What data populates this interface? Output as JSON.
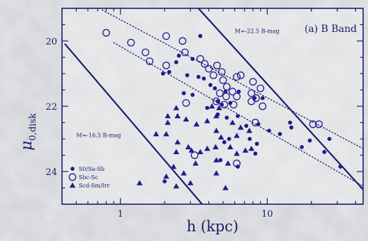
{
  "chart_data": {
    "type": "scatter",
    "panel_label": "(a) B Band",
    "xlabel": "h (kpc)",
    "ylabel_main": "μ",
    "ylabel_sub": "0,disk",
    "xscale": "log",
    "xlim": [
      0.4,
      45
    ],
    "ylim": [
      25.0,
      19.0
    ],
    "xticks": [
      1,
      10
    ],
    "xtick_labels": [
      "1",
      "10"
    ],
    "yticks": [
      20,
      22,
      24
    ],
    "ytick_labels": [
      "20",
      "22",
      "24"
    ],
    "legend_position": "bottom-left",
    "legend": [
      {
        "marker": "filled-circle",
        "label": "S0/Sa-Sb"
      },
      {
        "marker": "open-circle",
        "label": "Sbc-Sc"
      },
      {
        "marker": "filled-triangle",
        "label": "Scd-Sm/Irr"
      }
    ],
    "reference_lines": [
      {
        "label": "M=-22.5 B-mag",
        "style": "solid",
        "points": [
          [
            3.4,
            19.0
          ],
          [
            45,
            24.55
          ]
        ]
      },
      {
        "label": "M=-16.5 B-mag",
        "style": "solid",
        "points": [
          [
            0.42,
            20.1
          ],
          [
            3.6,
            25.0
          ]
        ]
      },
      {
        "style": "dotted",
        "points": [
          [
            0.75,
            19.05
          ],
          [
            45,
            23.3
          ]
        ]
      },
      {
        "style": "dotted",
        "points": [
          [
            0.9,
            20.05
          ],
          [
            45,
            24.45
          ]
        ]
      }
    ],
    "line_labels": [
      {
        "text": "M=-22.5 B-mag",
        "x": 6.0,
        "y": 19.75
      },
      {
        "text": "M=-16.5 B-mag",
        "x": 0.5,
        "y": 22.95
      }
    ],
    "series": [
      {
        "name": "S0/Sa-Sb",
        "marker": "filled-circle",
        "points": [
          [
            3.5,
            19.85
          ],
          [
            2.5,
            20.45
          ],
          [
            3.1,
            20.55
          ],
          [
            2.4,
            20.65
          ],
          [
            1.95,
            21.0
          ],
          [
            2.15,
            20.95
          ],
          [
            2.85,
            21.05
          ],
          [
            3.4,
            21.1
          ],
          [
            3.7,
            21.15
          ],
          [
            4.1,
            21.35
          ],
          [
            4.4,
            21.45
          ],
          [
            5.2,
            21.55
          ],
          [
            6.4,
            21.55
          ],
          [
            2.7,
            21.6
          ],
          [
            3.1,
            21.65
          ],
          [
            4.6,
            21.85
          ],
          [
            5.6,
            21.9
          ],
          [
            4.9,
            21.95
          ],
          [
            8.2,
            21.75
          ],
          [
            9.3,
            21.75
          ],
          [
            3.9,
            22.05
          ],
          [
            4.6,
            22.25
          ],
          [
            5.3,
            22.35
          ],
          [
            6.3,
            22.3
          ],
          [
            7.2,
            22.6
          ],
          [
            8.7,
            22.55
          ],
          [
            10.3,
            22.75
          ],
          [
            12.2,
            22.85
          ],
          [
            14.3,
            22.5
          ],
          [
            14.6,
            22.65
          ],
          [
            5.1,
            23.1
          ],
          [
            5.5,
            23.0
          ],
          [
            7.6,
            23.0
          ],
          [
            8.5,
            23.15
          ],
          [
            19.5,
            23.05
          ],
          [
            17.2,
            23.25
          ],
          [
            26.5,
            23.0
          ],
          [
            24.5,
            23.4
          ],
          [
            6.3,
            23.85
          ],
          [
            4.8,
            23.65
          ],
          [
            8.3,
            23.45
          ],
          [
            31.5,
            23.85
          ],
          [
            2.0,
            24.3
          ]
        ]
      },
      {
        "name": "Sbc-Sc",
        "marker": "open-circle",
        "points": [
          [
            0.8,
            19.75
          ],
          [
            1.18,
            20.05
          ],
          [
            1.48,
            20.35
          ],
          [
            1.58,
            20.62
          ],
          [
            2.05,
            19.85
          ],
          [
            2.65,
            20.0
          ],
          [
            2.75,
            20.35
          ],
          [
            3.5,
            20.55
          ],
          [
            3.75,
            20.7
          ],
          [
            2.05,
            20.75
          ],
          [
            4.0,
            20.85
          ],
          [
            4.55,
            20.75
          ],
          [
            4.9,
            20.95
          ],
          [
            4.3,
            21.05
          ],
          [
            5.0,
            21.2
          ],
          [
            6.2,
            21.1
          ],
          [
            6.6,
            21.05
          ],
          [
            5.3,
            21.4
          ],
          [
            5.8,
            21.55
          ],
          [
            4.75,
            21.6
          ],
          [
            5.25,
            21.7
          ],
          [
            6.2,
            21.7
          ],
          [
            4.5,
            21.85
          ],
          [
            5.1,
            21.95
          ],
          [
            8.0,
            21.25
          ],
          [
            9.0,
            21.45
          ],
          [
            7.8,
            21.6
          ],
          [
            7.8,
            21.85
          ],
          [
            8.4,
            21.75
          ],
          [
            9.3,
            22.0
          ],
          [
            2.8,
            21.9
          ],
          [
            5.9,
            21.95
          ],
          [
            8.3,
            22.5
          ],
          [
            20.5,
            22.55
          ],
          [
            22.5,
            22.55
          ],
          [
            3.2,
            23.5
          ],
          [
            6.2,
            23.75
          ]
        ]
      },
      {
        "name": "Scd-Sm/Irr",
        "marker": "filled-triangle",
        "points": [
          [
            1.75,
            22.85
          ],
          [
            2.4,
            22.05
          ],
          [
            2.1,
            22.3
          ],
          [
            2.45,
            22.3
          ],
          [
            2.8,
            22.4
          ],
          [
            3.3,
            22.55
          ],
          [
            3.9,
            22.45
          ],
          [
            4.2,
            22.0
          ],
          [
            4.5,
            22.3
          ],
          [
            4.7,
            22.05
          ],
          [
            2.1,
            22.5
          ],
          [
            2.05,
            22.85
          ],
          [
            2.45,
            23.1
          ],
          [
            2.4,
            23.4
          ],
          [
            2.9,
            23.25
          ],
          [
            3.05,
            23.35
          ],
          [
            3.5,
            23.4
          ],
          [
            3.9,
            23.3
          ],
          [
            4.45,
            23.25
          ],
          [
            4.5,
            22.75
          ],
          [
            4.85,
            22.95
          ],
          [
            5.6,
            23.25
          ],
          [
            6.2,
            22.9
          ],
          [
            2.3,
            23.85
          ],
          [
            3.25,
            23.75
          ],
          [
            4.5,
            23.65
          ],
          [
            5.4,
            23.75
          ],
          [
            6.2,
            23.45
          ],
          [
            7.1,
            23.35
          ],
          [
            5.8,
            22.5
          ],
          [
            6.6,
            22.65
          ],
          [
            7.55,
            22.75
          ],
          [
            7.8,
            23.3
          ],
          [
            2.05,
            24.15
          ],
          [
            2.7,
            24.05
          ],
          [
            3.0,
            24.35
          ],
          [
            4.5,
            24.05
          ],
          [
            2.4,
            24.45
          ],
          [
            5.2,
            24.5
          ],
          [
            1.35,
            24.35
          ]
        ]
      }
    ]
  }
}
